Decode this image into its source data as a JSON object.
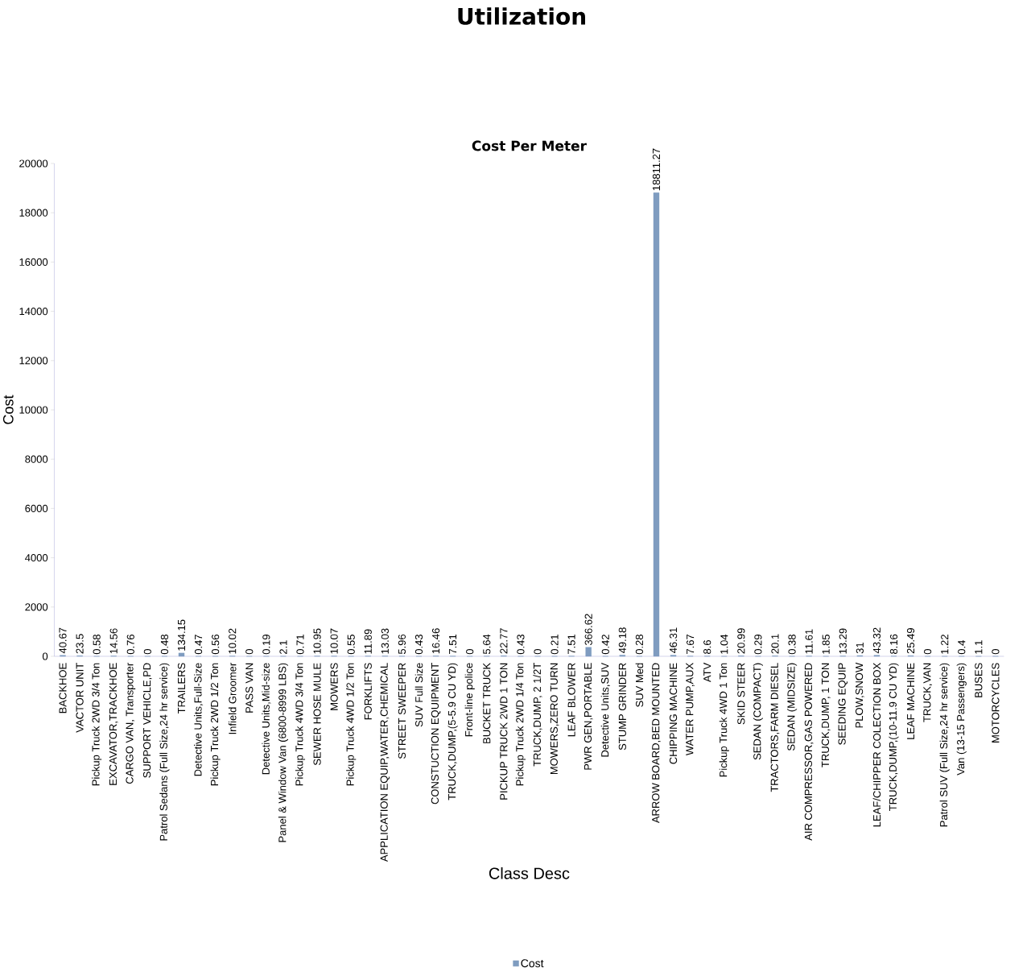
{
  "chart_data": {
    "type": "bar",
    "title": "Utilization",
    "subtitle": "Cost Per Meter",
    "xlabel": "Class Desc",
    "ylabel": "Cost",
    "categories": [
      "BACKHOE",
      "VACTOR UNIT",
      "Pickup Truck 2WD 3/4 Ton",
      "EXCAVATOR,TRACKHOE",
      "CARGO VAN, Transporter",
      "SUPPORT VEHICLE,PD",
      "Patrol Sedans (Full Size,24 hr service)",
      "TRAILERS",
      "Detective Units,Full-Size",
      "Pickup Truck 2WD 1/2 Ton",
      "Infield Groomer",
      "PASS VAN",
      "Detective Units,Mid-size",
      "Panel & Window Van (6800-8999 LBS)",
      "Pickup Truck 4WD 3/4 Ton",
      "SEWER HOSE MULE",
      "MOWERS",
      "Pickup Truck 4WD 1/2 Ton",
      "FORKLIFTS",
      "APPLICATION EQUIP,WATER,CHEMICAL",
      "STREET SWEEPER",
      "SUV Full Size",
      "CONSTUCTION EQUIPMENT",
      "TRUCK,DUMP,(5-5.9 CU YD)",
      "Front-line police",
      "BUCKET TRUCK",
      "PICKUP TRUCK 2WD 1 TON",
      "Pickup Truck 2WD 1/4 Ton",
      "TRUCK,DUMP, 2 1/2T",
      "MOWERS,ZERO TURN",
      "LEAF BLOWER",
      "PWR GEN,PORTABLE",
      "Detective Units,SUV",
      "STUMP GRINDER",
      "SUV Med",
      "ARROW BOARD,BED MOUNTED",
      "CHIPPING MACHINE",
      "WATER PUMP,AUX",
      "ATV",
      "Pickup Truck 4WD 1 Ton",
      "SKID STEER",
      "SEDAN (COMPACT)",
      "TRACTORS,FARM DIESEL",
      "SEDAN (MIDSIZE)",
      "AIR COMPRESSOR,GAS POWERED",
      "TRUCK,DUMP, 1 TON",
      "SEEDING EQUIP",
      "PLOW,SNOW",
      "LEAF/CHIPPER COLECTION BOX",
      "TRUCK,DUMP,(10-11.9 CU YD)",
      "LEAF MACHINE",
      "TRUCK,VAN",
      "Patrol SUV (Full Size,24 hr service)",
      "Van (13-15 Passengers)",
      "BUSES",
      "MOTORCYCLES"
    ],
    "series": [
      {
        "name": "Cost",
        "color": "#7f9cc0",
        "values": [
          40.67,
          23.5,
          0.58,
          14.56,
          0.76,
          0,
          0.48,
          134.15,
          0.47,
          0.56,
          10.02,
          0,
          0.19,
          2.1,
          0.71,
          10.95,
          10.07,
          0.55,
          11.89,
          13.03,
          5.96,
          0.43,
          16.46,
          7.51,
          0,
          5.64,
          22.77,
          0.43,
          0,
          0.21,
          7.51,
          366.62,
          0.42,
          49.18,
          0.28,
          18811.27,
          46.31,
          7.67,
          8.6,
          1.04,
          20.99,
          0.29,
          20.1,
          0.38,
          11.61,
          1.85,
          13.29,
          31,
          43.32,
          8.16,
          25.49,
          0,
          1.22,
          0.4,
          1.1,
          0
        ]
      }
    ],
    "ylim": [
      0,
      20000
    ],
    "yticks": [
      0,
      2000,
      4000,
      6000,
      8000,
      10000,
      12000,
      14000,
      16000,
      18000,
      20000
    ],
    "data_labels": true,
    "legend": "bottom",
    "grid": false
  }
}
